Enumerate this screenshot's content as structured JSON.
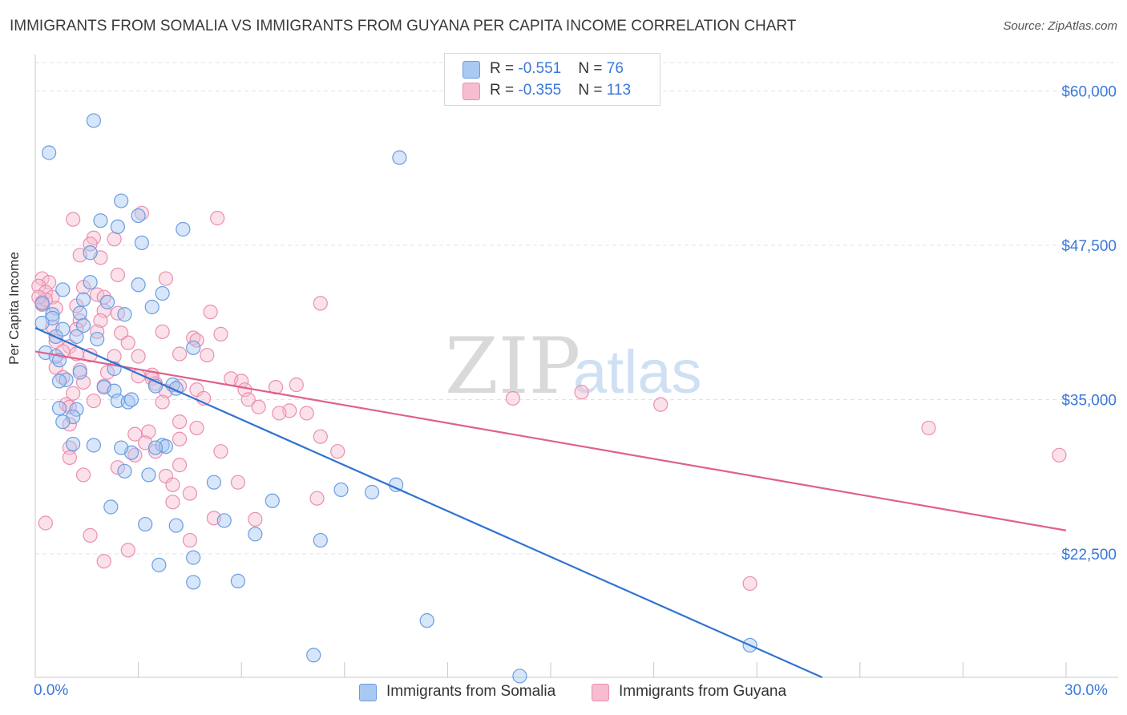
{
  "title": "IMMIGRANTS FROM SOMALIA VS IMMIGRANTS FROM GUYANA PER CAPITA INCOME CORRELATION CHART",
  "source": "Source: ZipAtlas.com",
  "watermark": {
    "zip": "ZIP",
    "atlas": "atlas"
  },
  "colors": {
    "somalia_fill": "#a9c8f2",
    "somalia_stroke": "#6a9de0",
    "somalia_line": "#2f74d0",
    "guyana_fill": "#f7bcd0",
    "guyana_stroke": "#e98fb0",
    "guyana_line": "#e0608e",
    "axis_text": "#3b78d8",
    "grid": "#e3e3e3"
  },
  "legend": {
    "somalia": {
      "r_label": "R = ",
      "r_value": "-0.551",
      "n_label": "N = ",
      "n_value": "76"
    },
    "guyana": {
      "r_label": "R = ",
      "r_value": "-0.355",
      "n_label": "N = ",
      "n_value": "113"
    }
  },
  "chart_data": {
    "type": "scatter",
    "xlabel": "",
    "ylabel": "Per Capita Income",
    "xlim": [
      0,
      30
    ],
    "ylim": [
      12500,
      62500
    ],
    "x_tick_labels": {
      "min": "0.0%",
      "max": "30.0%"
    },
    "y_ticks": [
      {
        "value": 22500,
        "label": "$22,500"
      },
      {
        "value": 35000,
        "label": "$35,000"
      },
      {
        "value": 47500,
        "label": "$47,500"
      },
      {
        "value": 60000,
        "label": "$60,000"
      }
    ],
    "grid": true,
    "legend_position": "bottom",
    "series": [
      {
        "name": "Immigrants from Somalia",
        "trend": {
          "x": [
            0.0,
            22.9
          ],
          "y": [
            40800,
            12500
          ]
        },
        "points": [
          [
            1.7,
            57600
          ],
          [
            0.4,
            55000
          ],
          [
            10.6,
            54600
          ],
          [
            2.5,
            51100
          ],
          [
            1.9,
            49500
          ],
          [
            3.0,
            49900
          ],
          [
            2.4,
            49000
          ],
          [
            4.3,
            48800
          ],
          [
            3.1,
            47700
          ],
          [
            1.6,
            46900
          ],
          [
            1.6,
            44500
          ],
          [
            3.0,
            44300
          ],
          [
            3.7,
            43600
          ],
          [
            0.8,
            43900
          ],
          [
            1.4,
            43100
          ],
          [
            2.1,
            42900
          ],
          [
            0.2,
            42800
          ],
          [
            3.4,
            42500
          ],
          [
            0.5,
            41900
          ],
          [
            1.3,
            42000
          ],
          [
            2.6,
            41900
          ],
          [
            0.5,
            41600
          ],
          [
            1.4,
            41000
          ],
          [
            0.2,
            41200
          ],
          [
            0.8,
            40700
          ],
          [
            0.6,
            40100
          ],
          [
            1.2,
            40100
          ],
          [
            1.8,
            39900
          ],
          [
            4.6,
            39200
          ],
          [
            0.3,
            38800
          ],
          [
            0.6,
            38500
          ],
          [
            0.7,
            38200
          ],
          [
            2.3,
            37500
          ],
          [
            1.3,
            37200
          ],
          [
            0.9,
            36600
          ],
          [
            0.7,
            36500
          ],
          [
            3.5,
            36100
          ],
          [
            4.0,
            36200
          ],
          [
            2.0,
            36000
          ],
          [
            4.1,
            35900
          ],
          [
            2.3,
            35700
          ],
          [
            2.4,
            34900
          ],
          [
            2.7,
            34800
          ],
          [
            2.8,
            35000
          ],
          [
            1.2,
            34200
          ],
          [
            1.1,
            33600
          ],
          [
            0.8,
            33200
          ],
          [
            1.1,
            31400
          ],
          [
            1.7,
            31300
          ],
          [
            3.7,
            31300
          ],
          [
            3.8,
            31200
          ],
          [
            3.5,
            31100
          ],
          [
            2.8,
            30700
          ],
          [
            2.6,
            29200
          ],
          [
            3.3,
            28900
          ],
          [
            5.2,
            28300
          ],
          [
            8.9,
            27700
          ],
          [
            9.8,
            27500
          ],
          [
            10.5,
            28100
          ],
          [
            6.9,
            26800
          ],
          [
            2.2,
            26300
          ],
          [
            5.5,
            25200
          ],
          [
            3.2,
            24900
          ],
          [
            4.1,
            24800
          ],
          [
            6.4,
            24100
          ],
          [
            8.3,
            23600
          ],
          [
            4.6,
            22200
          ],
          [
            3.6,
            21600
          ],
          [
            4.6,
            20200
          ],
          [
            5.9,
            20300
          ],
          [
            11.4,
            17100
          ],
          [
            20.8,
            15100
          ],
          [
            8.1,
            14300
          ],
          [
            14.1,
            12600
          ],
          [
            0.7,
            34300
          ],
          [
            2.5,
            31100
          ]
        ]
      },
      {
        "name": "Immigrants from Guyana",
        "trend": {
          "x": [
            0.0,
            30.0
          ],
          "y": [
            38900,
            24400
          ]
        },
        "points": [
          [
            0.2,
            44800
          ],
          [
            0.4,
            44500
          ],
          [
            0.1,
            44200
          ],
          [
            0.3,
            43700
          ],
          [
            0.5,
            43300
          ],
          [
            0.2,
            42900
          ],
          [
            0.6,
            42400
          ],
          [
            0.2,
            42700
          ],
          [
            0.3,
            43100
          ],
          [
            0.1,
            43300
          ],
          [
            1.1,
            49600
          ],
          [
            3.1,
            50100
          ],
          [
            5.3,
            49700
          ],
          [
            1.7,
            48100
          ],
          [
            2.3,
            48000
          ],
          [
            1.6,
            47600
          ],
          [
            1.3,
            46700
          ],
          [
            1.9,
            46500
          ],
          [
            2.4,
            45100
          ],
          [
            3.8,
            44800
          ],
          [
            1.4,
            44100
          ],
          [
            1.8,
            43500
          ],
          [
            2.0,
            43300
          ],
          [
            1.2,
            42600
          ],
          [
            2.0,
            42200
          ],
          [
            2.4,
            42000
          ],
          [
            1.3,
            41400
          ],
          [
            1.9,
            41400
          ],
          [
            5.1,
            42100
          ],
          [
            8.3,
            42800
          ],
          [
            0.5,
            40900
          ],
          [
            1.2,
            40700
          ],
          [
            1.8,
            40500
          ],
          [
            2.5,
            40400
          ],
          [
            3.7,
            40500
          ],
          [
            4.6,
            40000
          ],
          [
            4.7,
            39800
          ],
          [
            5.4,
            40300
          ],
          [
            0.6,
            39700
          ],
          [
            1.0,
            39300
          ],
          [
            2.7,
            39600
          ],
          [
            0.8,
            38900
          ],
          [
            1.2,
            38700
          ],
          [
            1.6,
            38600
          ],
          [
            2.3,
            38500
          ],
          [
            3.0,
            38500
          ],
          [
            4.2,
            38700
          ],
          [
            5.0,
            38600
          ],
          [
            0.6,
            37600
          ],
          [
            1.3,
            37400
          ],
          [
            2.1,
            37200
          ],
          [
            3.0,
            36900
          ],
          [
            3.4,
            37000
          ],
          [
            3.4,
            36700
          ],
          [
            5.7,
            36700
          ],
          [
            6.0,
            36500
          ],
          [
            0.8,
            36800
          ],
          [
            1.4,
            36400
          ],
          [
            2.0,
            36100
          ],
          [
            3.5,
            36300
          ],
          [
            4.2,
            36100
          ],
          [
            6.1,
            35800
          ],
          [
            7.0,
            36000
          ],
          [
            7.6,
            36200
          ],
          [
            3.8,
            35700
          ],
          [
            4.7,
            35800
          ],
          [
            1.1,
            35500
          ],
          [
            4.9,
            35100
          ],
          [
            6.2,
            35000
          ],
          [
            1.7,
            34900
          ],
          [
            3.7,
            34800
          ],
          [
            6.5,
            34400
          ],
          [
            7.4,
            34100
          ],
          [
            7.1,
            33900
          ],
          [
            7.9,
            33900
          ],
          [
            0.9,
            34600
          ],
          [
            1.0,
            34400
          ],
          [
            13.9,
            35100
          ],
          [
            15.9,
            35600
          ],
          [
            18.2,
            34600
          ],
          [
            4.2,
            33200
          ],
          [
            4.7,
            32700
          ],
          [
            3.3,
            32400
          ],
          [
            1.0,
            33000
          ],
          [
            8.3,
            32000
          ],
          [
            2.9,
            32200
          ],
          [
            3.2,
            31500
          ],
          [
            4.2,
            31800
          ],
          [
            1.0,
            31100
          ],
          [
            5.4,
            30800
          ],
          [
            8.8,
            30800
          ],
          [
            2.9,
            30500
          ],
          [
            3.5,
            30800
          ],
          [
            1.0,
            30300
          ],
          [
            4.2,
            29700
          ],
          [
            2.4,
            29500
          ],
          [
            1.4,
            28900
          ],
          [
            3.8,
            28800
          ],
          [
            5.9,
            28300
          ],
          [
            4.0,
            28100
          ],
          [
            4.5,
            27400
          ],
          [
            8.2,
            27000
          ],
          [
            4.0,
            26700
          ],
          [
            5.2,
            25400
          ],
          [
            6.4,
            25300
          ],
          [
            1.6,
            24000
          ],
          [
            4.5,
            23600
          ],
          [
            2.7,
            22800
          ],
          [
            2.0,
            21900
          ],
          [
            0.3,
            25000
          ],
          [
            26.0,
            32700
          ],
          [
            29.8,
            30500
          ],
          [
            20.8,
            20100
          ]
        ]
      }
    ]
  }
}
